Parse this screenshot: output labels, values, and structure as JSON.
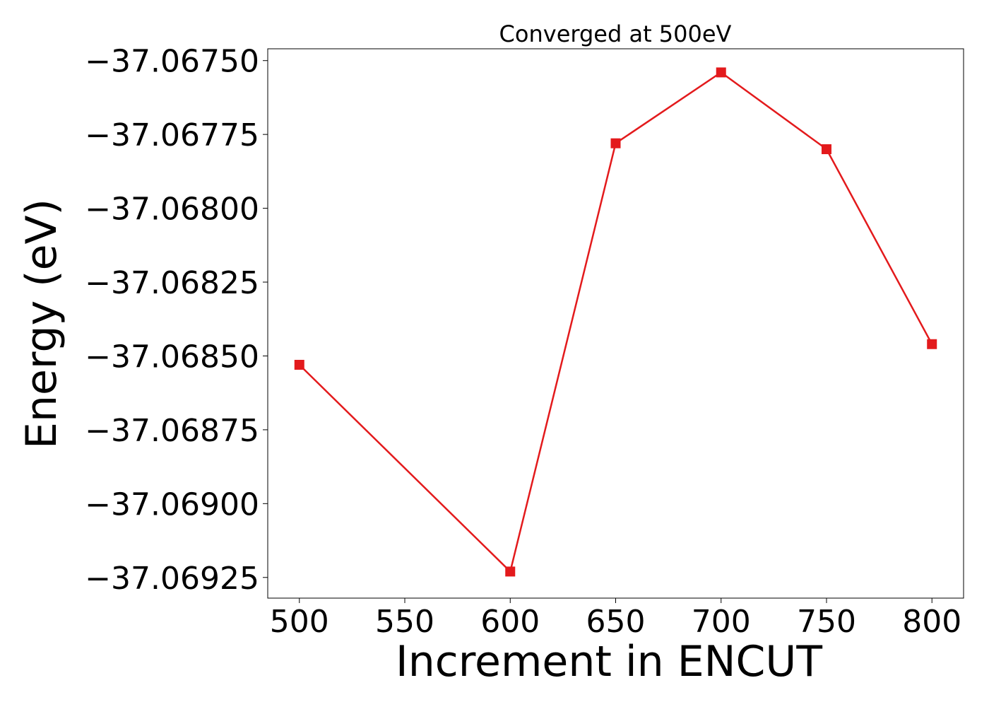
{
  "chart_data": {
    "type": "line",
    "title": "Converged at 500eV",
    "xlabel": "Increment in ENCUT",
    "ylabel": "Energy (eV)",
    "x": [
      500,
      600,
      650,
      700,
      750,
      800
    ],
    "series": [
      {
        "values": [
          -37.06853,
          -37.06923,
          -37.06778,
          -37.06754,
          -37.0678,
          -37.06846
        ],
        "color": "#e31a1c",
        "marker": "square"
      }
    ],
    "xlim": [
      485,
      815
    ],
    "ylim": [
      -37.06932,
      -37.06746
    ],
    "xticks": [
      500,
      550,
      600,
      650,
      700,
      750,
      800
    ],
    "xtick_labels": [
      "500",
      "550",
      "600",
      "650",
      "700",
      "750",
      "800"
    ],
    "yticks": [
      -37.0675,
      -37.06775,
      -37.068,
      -37.06825,
      -37.0685,
      -37.06875,
      -37.069,
      -37.06925
    ],
    "ytick_labels": [
      "−37.06750",
      "−37.06775",
      "−37.06800",
      "−37.06825",
      "−37.06850",
      "−37.06875",
      "−37.06900",
      "−37.06925"
    ],
    "grid": false,
    "legend": "none"
  }
}
